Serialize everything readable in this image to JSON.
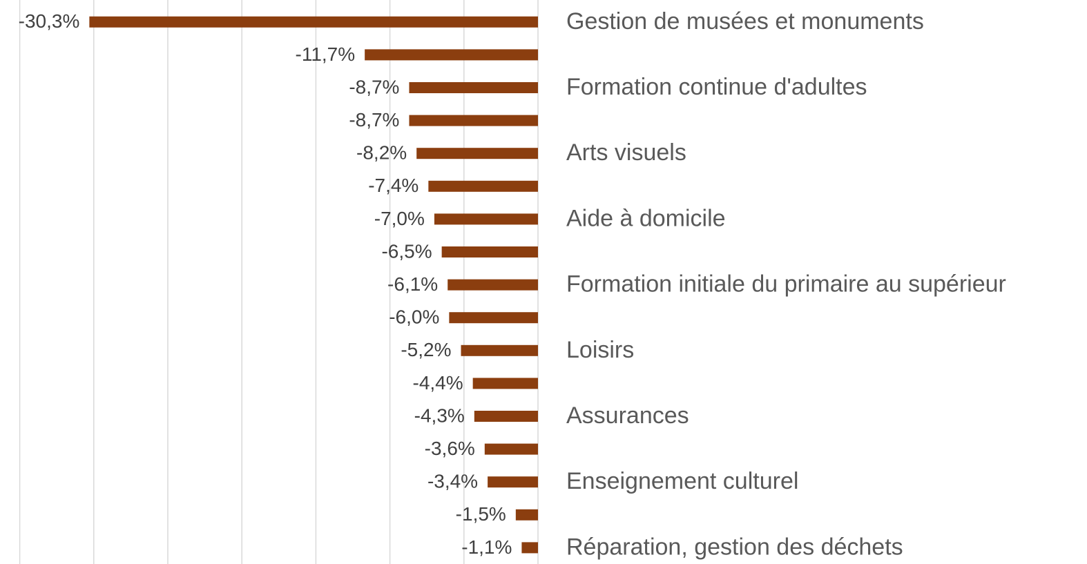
{
  "chart_data": {
    "type": "barh",
    "categories": [
      "Gestion de musées et monuments",
      null,
      "Formation continue d'adultes",
      null,
      "Arts visuels",
      null,
      "Aide à domicile",
      null,
      "Formation initiale du primaire au supérieur",
      null,
      "Loisirs",
      null,
      "Assurances",
      null,
      "Enseignement culturel",
      null,
      "Réparation, gestion des déchets"
    ],
    "values": [
      -30.3,
      -11.7,
      -8.7,
      -8.7,
      -8.2,
      -7.4,
      -7.0,
      -6.5,
      -6.1,
      -6.0,
      -5.2,
      -4.4,
      -4.3,
      -3.6,
      -3.4,
      -1.5,
      -1.1
    ],
    "value_labels": [
      "-30,3%",
      "-11,7%",
      "-8,7%",
      "-8,7%",
      "-8,2%",
      "-7,4%",
      "-7,0%",
      "-6,5%",
      "-6,1%",
      "-6,0%",
      "-5,2%",
      "-4,4%",
      "-4,3%",
      "-3,6%",
      "-3,4%",
      "-1,5%",
      "-1,1%"
    ],
    "color": "#8b3e0f",
    "xlim": [
      -35,
      0
    ],
    "xticks": [
      -35,
      -30,
      -25,
      -20,
      -15,
      -10,
      -5,
      0
    ],
    "grid": true
  }
}
